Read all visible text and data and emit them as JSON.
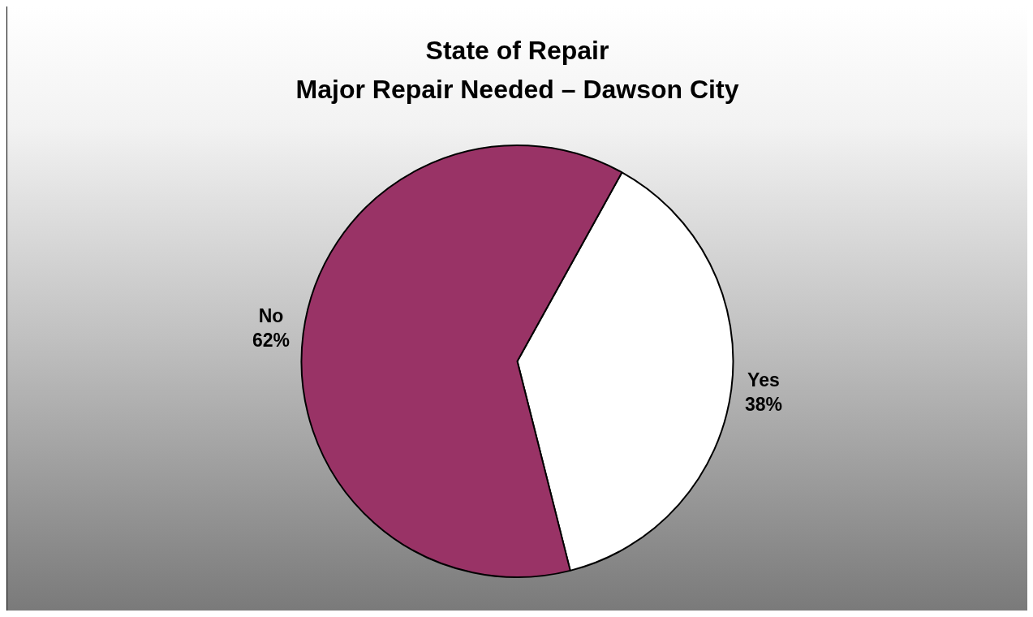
{
  "chart_data": {
    "type": "pie",
    "title": "State of Repair",
    "subtitle": "Major Repair Needed – Dawson City",
    "categories": [
      "Yes",
      "No"
    ],
    "values": [
      38,
      62
    ],
    "colors": [
      "#ffffff",
      "#993366"
    ],
    "value_labels": [
      "38%",
      "62%"
    ],
    "legend": false
  }
}
